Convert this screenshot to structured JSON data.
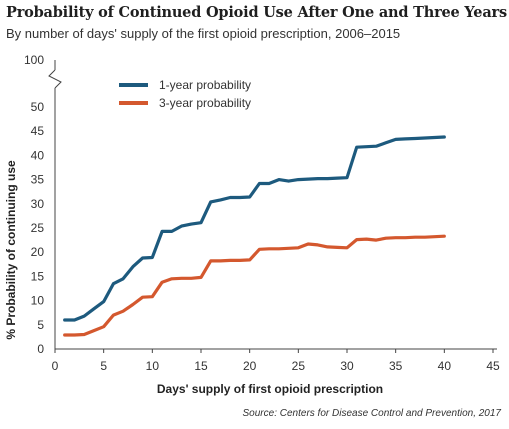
{
  "title": "Probability of Continued Opioid Use After One and Three Years",
  "subtitle": "By number of days' supply of the first opioid prescription, 2006–2015",
  "source": "Source: Centers for Disease Control and Prevention, 2017",
  "chart_data": {
    "type": "line",
    "xlabel": "Days' supply of first opioid prescription",
    "ylabel": "% Probability of continuing use",
    "xlim": [
      0,
      45
    ],
    "ylim": [
      0,
      50
    ],
    "x_ticks": [
      0,
      5,
      10,
      15,
      20,
      25,
      30,
      35,
      40,
      45
    ],
    "y_ticks": [
      0,
      5,
      10,
      15,
      20,
      25,
      30,
      35,
      40,
      45,
      50
    ],
    "y_break_label": "100",
    "grid": false,
    "legend_position": "top-left",
    "series": [
      {
        "name": "1-year probability",
        "color": "#1d5a7e",
        "x": [
          1,
          2,
          3,
          4,
          5,
          6,
          7,
          8,
          9,
          10,
          11,
          12,
          13,
          14,
          15,
          16,
          17,
          18,
          19,
          20,
          21,
          22,
          23,
          24,
          25,
          26,
          27,
          28,
          29,
          30,
          31,
          32,
          33,
          34,
          35,
          36,
          37,
          38,
          39,
          40
        ],
        "y": [
          6.0,
          6.0,
          6.8,
          8.3,
          9.8,
          13.5,
          14.5,
          17.0,
          18.8,
          18.9,
          24.3,
          24.3,
          25.4,
          25.8,
          26.1,
          30.4,
          30.8,
          31.3,
          31.3,
          31.4,
          34.2,
          34.2,
          35.0,
          34.7,
          35.0,
          35.1,
          35.2,
          35.2,
          35.3,
          35.4,
          41.7,
          41.8,
          41.9,
          42.6,
          43.3,
          43.4,
          43.5,
          43.6,
          43.7,
          43.8
        ]
      },
      {
        "name": "3-year probability",
        "color": "#d4582e",
        "x": [
          1,
          2,
          3,
          4,
          5,
          6,
          7,
          8,
          9,
          10,
          11,
          12,
          13,
          14,
          15,
          16,
          17,
          18,
          19,
          20,
          21,
          22,
          23,
          24,
          25,
          26,
          27,
          28,
          29,
          30,
          31,
          32,
          33,
          34,
          35,
          36,
          37,
          38,
          39,
          40
        ],
        "y": [
          2.9,
          2.9,
          3.0,
          3.8,
          4.6,
          7.0,
          7.8,
          9.2,
          10.7,
          10.8,
          13.8,
          14.5,
          14.6,
          14.6,
          14.8,
          18.2,
          18.2,
          18.3,
          18.3,
          18.4,
          20.6,
          20.7,
          20.7,
          20.8,
          20.9,
          21.7,
          21.5,
          21.1,
          21.0,
          20.9,
          22.6,
          22.7,
          22.5,
          22.9,
          23.0,
          23.0,
          23.1,
          23.1,
          23.2,
          23.3
        ]
      }
    ]
  }
}
